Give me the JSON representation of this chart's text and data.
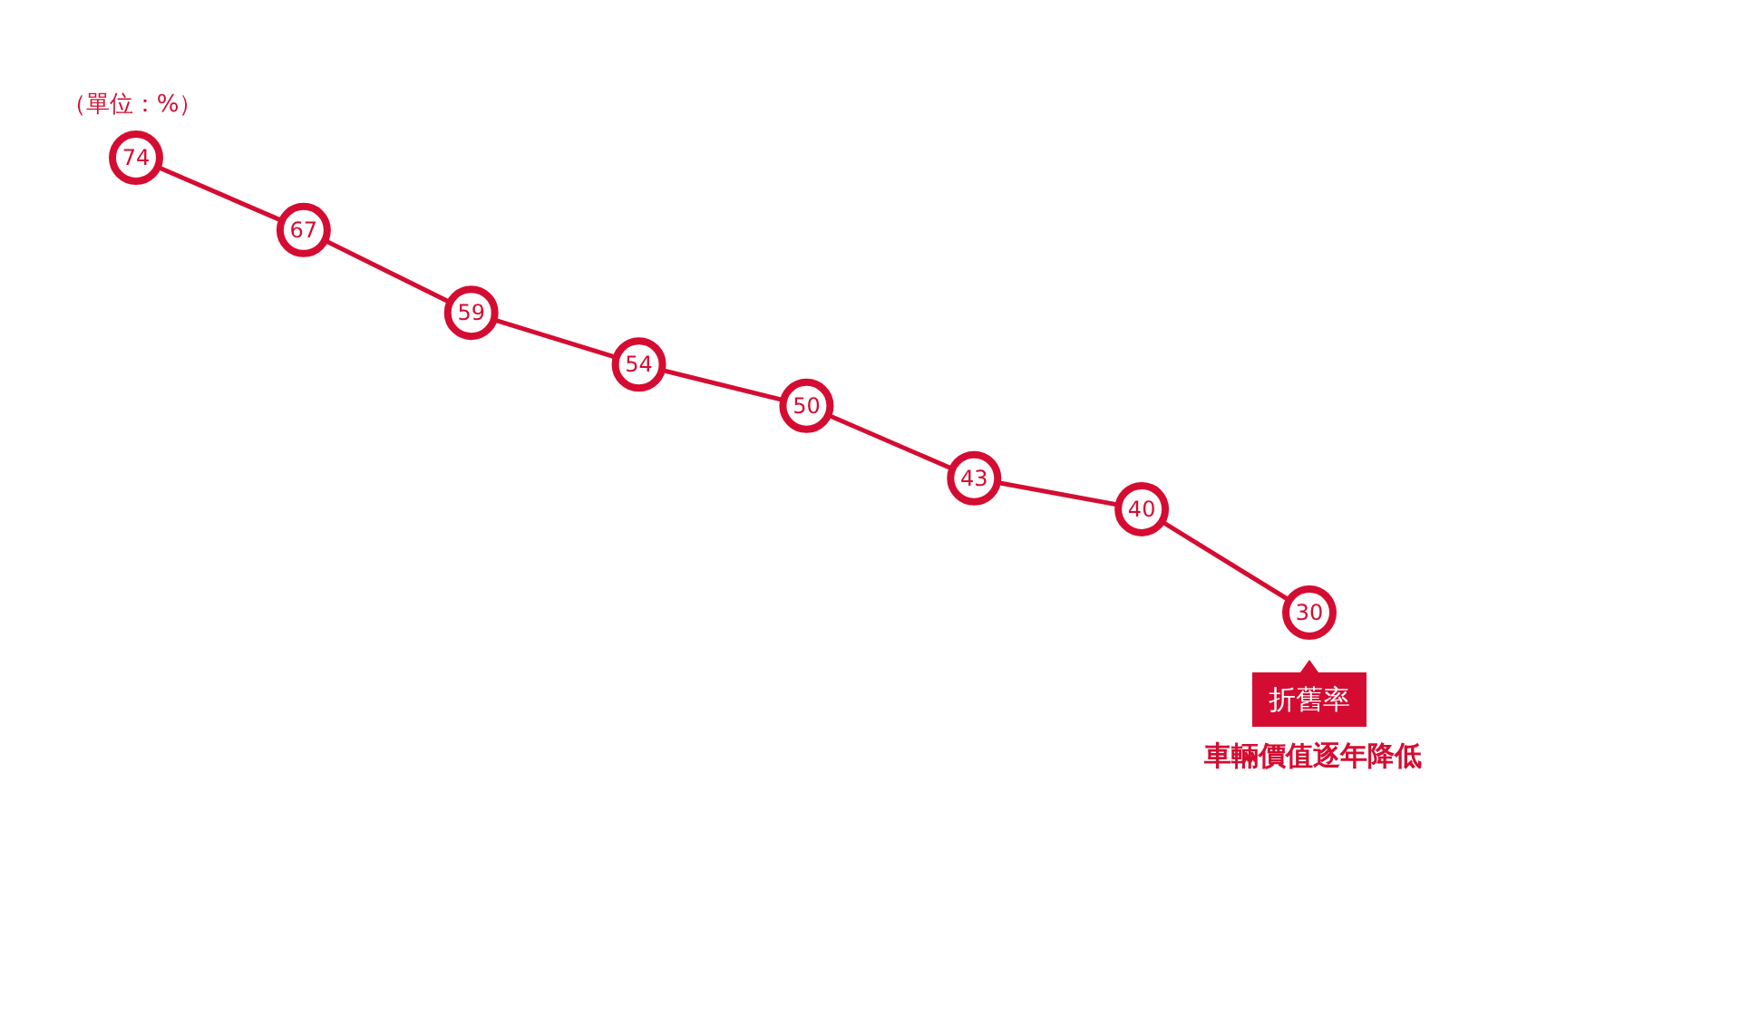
{
  "chart_data": {
    "type": "line",
    "ylabel": "（單位：%）",
    "categories": [
      null,
      null,
      null,
      null,
      null,
      null,
      null,
      null
    ],
    "series": [
      {
        "name": "折舊率",
        "color": "#d50c32",
        "values": [
          74,
          67,
          59,
          54,
          50,
          43,
          40,
          30
        ]
      }
    ],
    "data_labels": true,
    "marker": "circle",
    "line_style": "solid",
    "tick_labels": false,
    "legend": false,
    "annotations": [
      "車輛價值逐年降低"
    ]
  }
}
